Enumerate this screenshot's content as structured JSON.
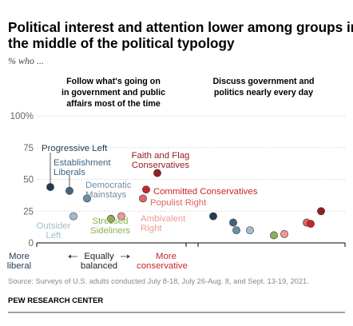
{
  "title_line1": "Political interest and attention lower among groups in",
  "title_line2": "the middle of the political typology",
  "subtitle": "% who ...",
  "colors": {
    "progressive_left": "#1f3b57",
    "establishment_liberals": "#3e6582",
    "democratic_mainstays": "#6a8fa8",
    "outsider_left": "#a3bccc",
    "stressed_sideliners": "#8db053",
    "ambivalent_right": "#ef9a90",
    "populist_right": "#e16464",
    "committed_conservatives": "#c8262c",
    "faith_and_flag": "#931f20"
  },
  "chart_data": {
    "type": "scatter",
    "panels": [
      {
        "title_lines": [
          "Follow what's going on",
          "in government and public",
          "affairs most of the time"
        ],
        "ylim": [
          0,
          100
        ],
        "yticks": [
          "0",
          "25",
          "50",
          "75",
          "100%"
        ],
        "points": [
          {
            "group": "Progressive Left",
            "value": 44
          },
          {
            "group": "Establishment Liberals",
            "value": 41
          },
          {
            "group": "Democratic Mainstays",
            "value": 35
          },
          {
            "group": "Outsider Left",
            "value": 21
          },
          {
            "group": "Stressed Sideliners",
            "value": 19
          },
          {
            "group": "Ambivalent Right",
            "value": 21
          },
          {
            "group": "Populist Right",
            "value": 35
          },
          {
            "group": "Committed Conservatives",
            "value": 42
          },
          {
            "group": "Faith and Flag Conservatives",
            "value": 55
          }
        ]
      },
      {
        "title_lines": [
          "Discuss government and",
          "politics nearly every day"
        ],
        "ylim": [
          0,
          100
        ],
        "points": [
          {
            "group": "Progressive Left",
            "value": 21
          },
          {
            "group": "Establishment Liberals",
            "value": 16
          },
          {
            "group": "Democratic Mainstays",
            "value": 10
          },
          {
            "group": "Outsider Left",
            "value": 10
          },
          {
            "group": "Stressed Sideliners",
            "value": 6
          },
          {
            "group": "Ambivalent Right",
            "value": 7
          },
          {
            "group": "Populist Right",
            "value": 16
          },
          {
            "group": "Committed Conservatives",
            "value": 15
          },
          {
            "group": "Faith and Flag Conservatives",
            "value": 25
          }
        ]
      }
    ],
    "group_labels": {
      "progressive_left": [
        "Progressive Left"
      ],
      "establishment_liberals": [
        "Establishment",
        "Liberals"
      ],
      "democratic_mainstays": [
        "Democratic",
        "Mainstays"
      ],
      "outsider_left": [
        "Outsider",
        "Left"
      ],
      "stressed_sideliners": [
        "Stressed",
        "Sideliners"
      ],
      "ambivalent_right": [
        "Ambivalent",
        "Right"
      ],
      "populist_right": [
        "Populist Right"
      ],
      "committed_conservatives": [
        "Committed Conservatives"
      ],
      "faith_and_flag": [
        "Faith and Flag",
        "Conservatives"
      ]
    },
    "axis_labels": {
      "left": [
        "More",
        "liberal"
      ],
      "middle": [
        "Equally",
        "balanced"
      ],
      "right": [
        "More",
        "conservative"
      ]
    }
  },
  "source": "Source: Surveys of U.S. adults conducted July 8-18, July 26-Aug. 8, and Sept. 13-19, 2021.",
  "brand": "PEW RESEARCH CENTER"
}
